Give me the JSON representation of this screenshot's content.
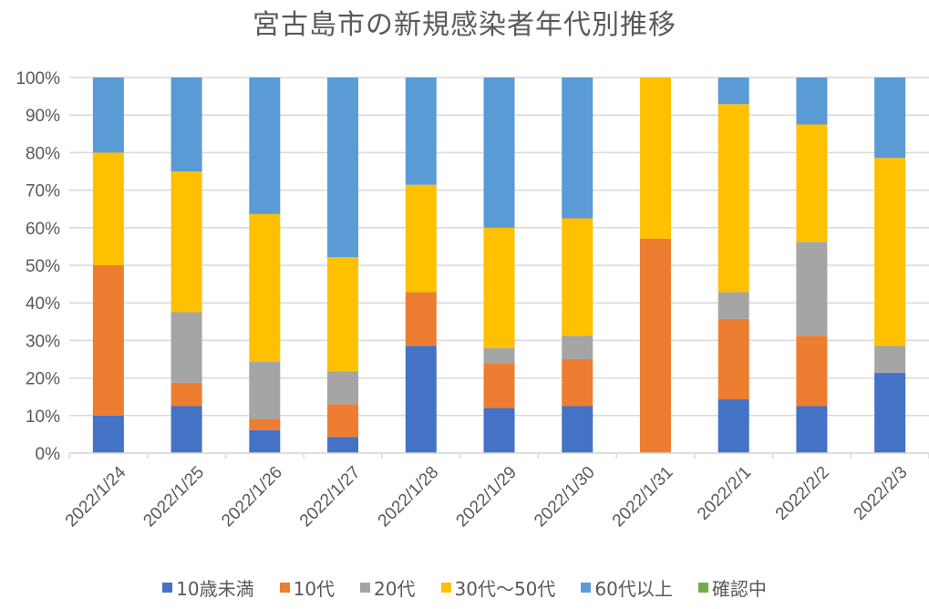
{
  "chart_data": {
    "type": "bar",
    "stacked": "percent",
    "title": "宮古島市の新規感染者年代別推移",
    "xlabel": "",
    "ylabel": "",
    "ylim": [
      0,
      100
    ],
    "y_ticks": [
      "0%",
      "10%",
      "20%",
      "30%",
      "40%",
      "50%",
      "60%",
      "70%",
      "80%",
      "90%",
      "100%"
    ],
    "grid": true,
    "legend_position": "bottom",
    "categories": [
      "2022/1/24",
      "2022/1/25",
      "2022/1/26",
      "2022/1/27",
      "2022/1/28",
      "2022/1/29",
      "2022/1/30",
      "2022/1/31",
      "2022/2/1",
      "2022/2/2",
      "2022/2/3"
    ],
    "series": [
      {
        "name": "10歳未満",
        "color": "#4472C4",
        "values": [
          10,
          12.5,
          6.1,
          4.3,
          28.6,
          12,
          12.5,
          0,
          14.3,
          12.5,
          21.4
        ]
      },
      {
        "name": "10代",
        "color": "#ED7D31",
        "values": [
          40,
          6.25,
          3.0,
          8.7,
          14.3,
          12,
          12.5,
          57.1,
          21.4,
          18.75,
          0
        ]
      },
      {
        "name": "20代",
        "color": "#A5A5A5",
        "values": [
          0,
          18.75,
          15.2,
          8.7,
          0,
          4,
          6.25,
          0,
          7.1,
          25,
          7.1
        ]
      },
      {
        "name": "30代～50代",
        "color": "#FFC000",
        "values": [
          30,
          37.5,
          39.4,
          30.4,
          28.6,
          32,
          31.25,
          42.9,
          50,
          31.25,
          50
        ]
      },
      {
        "name": "60代以上",
        "color": "#5B9BD5",
        "values": [
          20,
          25,
          36.4,
          47.8,
          28.6,
          40,
          37.5,
          0,
          7.1,
          12.5,
          21.4
        ]
      },
      {
        "name": "確認中",
        "color": "#70AD47",
        "values": [
          0,
          0,
          0,
          0,
          0,
          0,
          0,
          0,
          0,
          0,
          0
        ]
      }
    ]
  }
}
